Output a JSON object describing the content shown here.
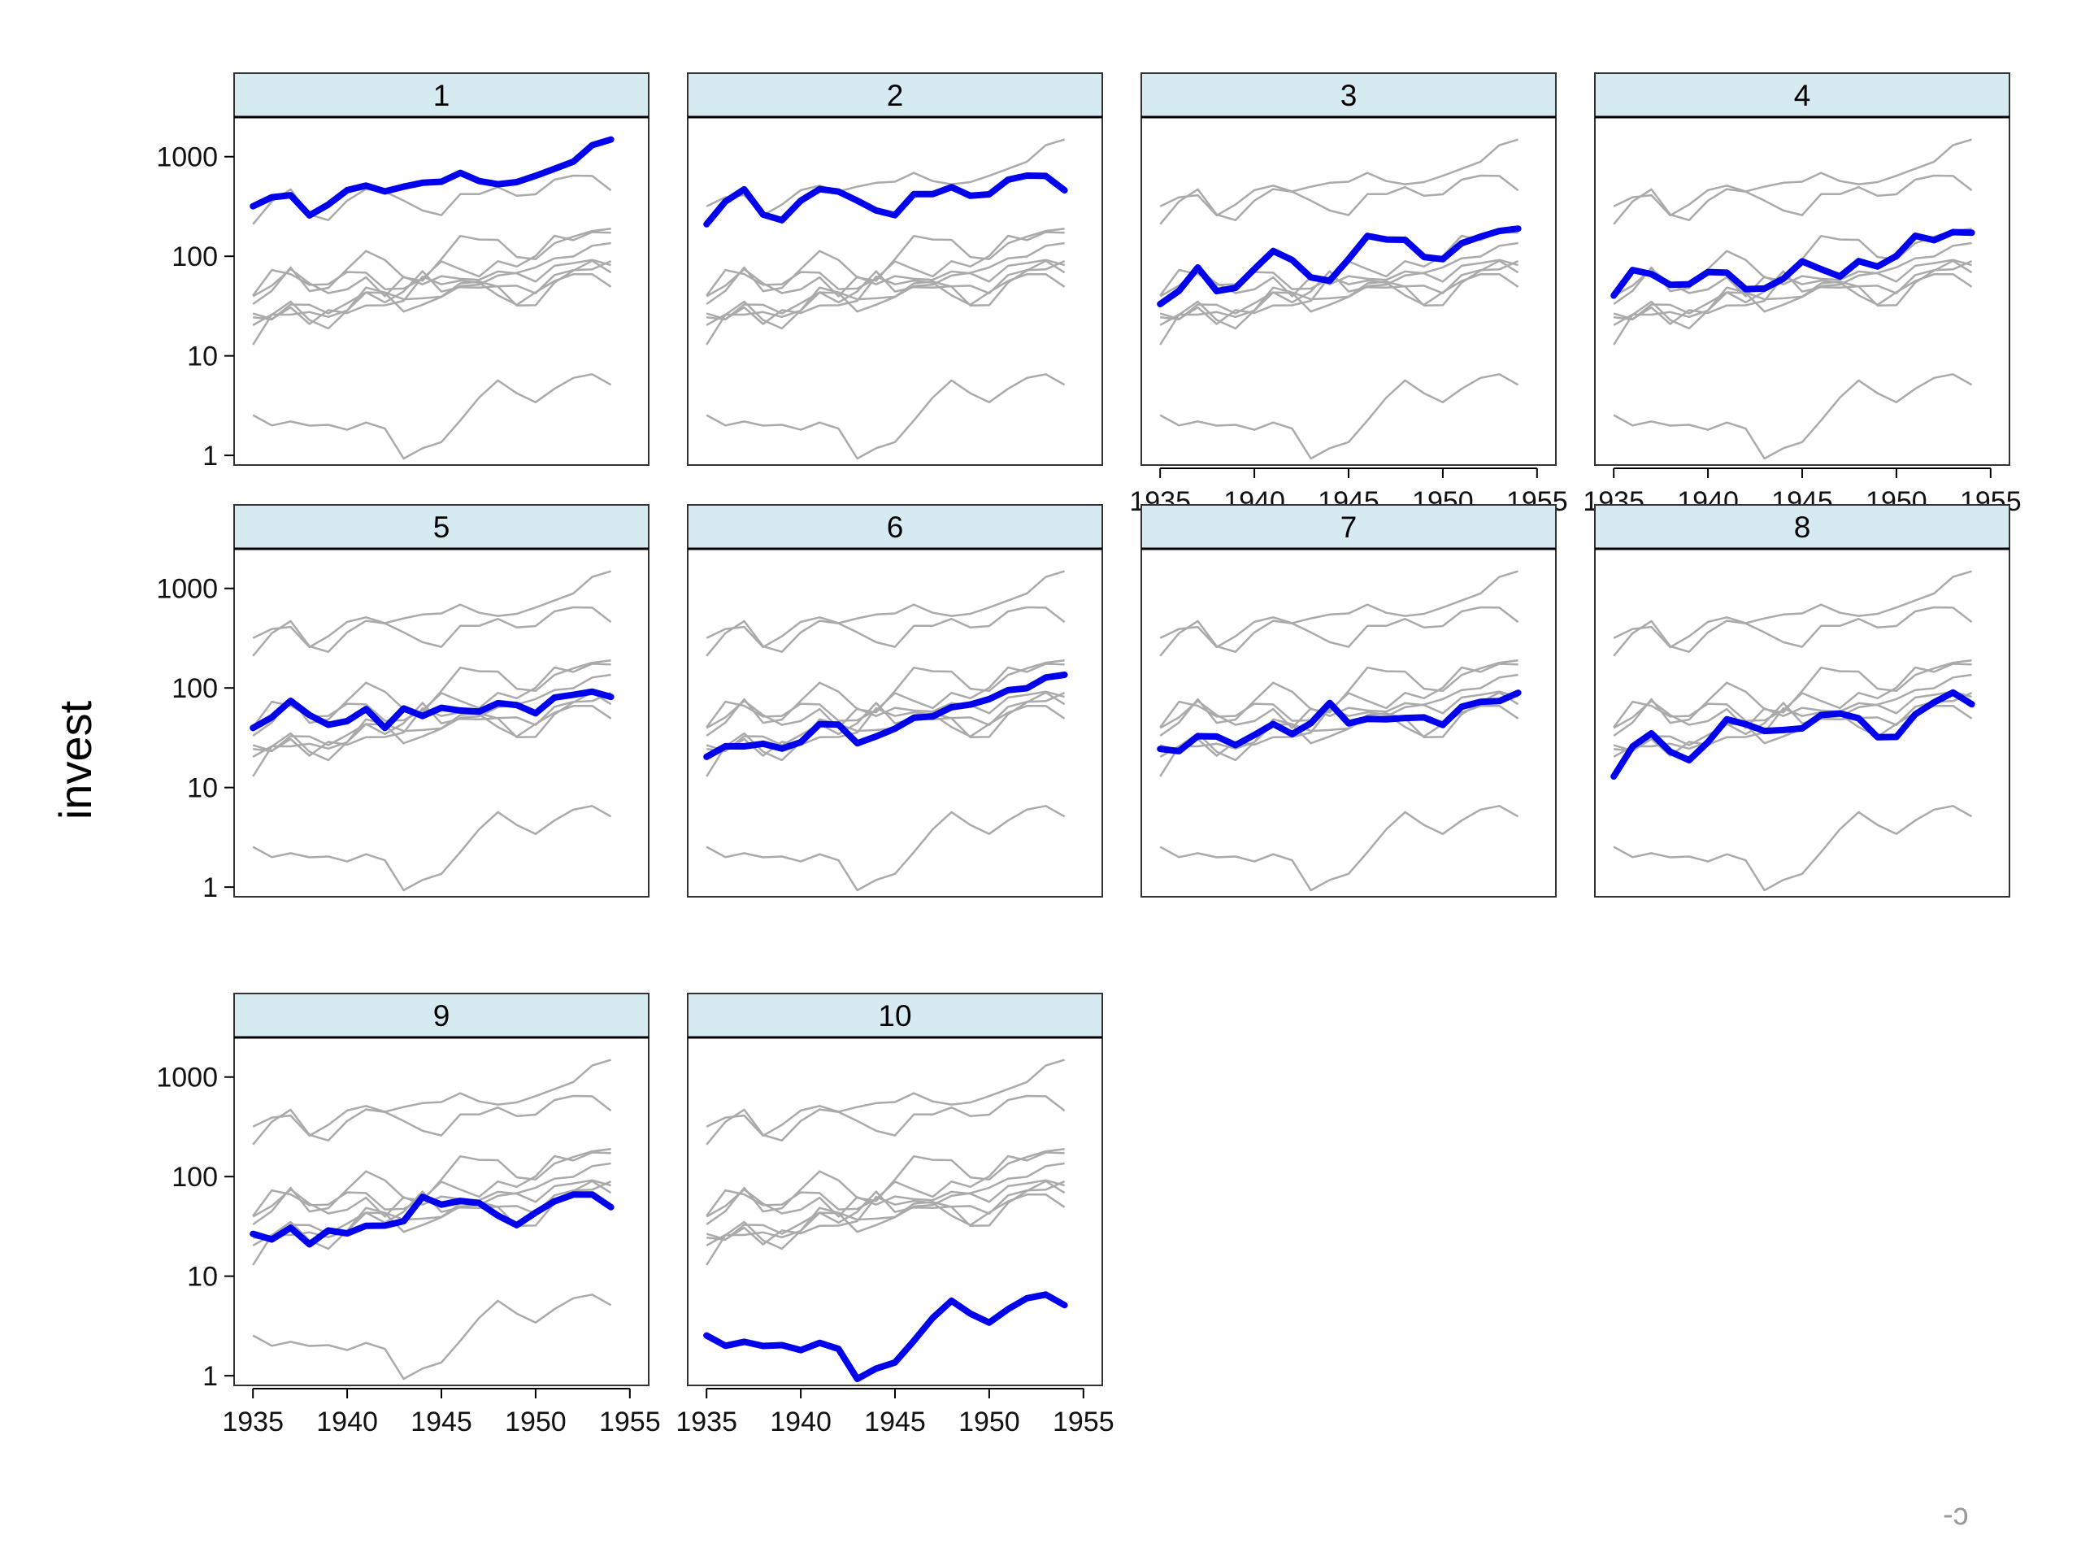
{
  "colors": {
    "highlight": "#0000ee",
    "background_series": "#aaaaaa",
    "strip_fill": "#d6eaf2",
    "panel_border": "#333333"
  },
  "corner_mark": "-ɔ",
  "chart_data": {
    "type": "line",
    "layout": "small-multiples",
    "ylabel": "invest",
    "yscale": "log",
    "ylim": [
      0.8,
      2500
    ],
    "xlim": [
      1934,
      1956
    ],
    "yticks": [
      1,
      10,
      100,
      1000
    ],
    "ytick_labels": [
      "1",
      "10",
      "100",
      "1000"
    ],
    "xticks": [
      1935,
      1940,
      1945,
      1950,
      1955
    ],
    "xtick_labels": [
      "1935",
      "1940",
      "1945",
      "1950",
      "1955"
    ],
    "grid": false,
    "x": [
      1935,
      1936,
      1937,
      1938,
      1939,
      1940,
      1941,
      1942,
      1943,
      1944,
      1945,
      1946,
      1947,
      1948,
      1949,
      1950,
      1951,
      1952,
      1953,
      1954
    ],
    "series": [
      {
        "name": "1",
        "values": [
          317.6,
          391.8,
          410.6,
          257.7,
          330.8,
          461.2,
          512.0,
          448.0,
          499.6,
          547.5,
          561.2,
          688.1,
          568.9,
          529.2,
          555.1,
          642.9,
          755.9,
          891.2,
          1304.4,
          1486.7
        ]
      },
      {
        "name": "2",
        "values": [
          209.9,
          355.3,
          469.9,
          262.3,
          230.4,
          361.6,
          472.8,
          445.6,
          361.6,
          288.2,
          258.7,
          420.3,
          420.5,
          494.5,
          405.1,
          418.8,
          588.2,
          645.5,
          641.0,
          459.3
        ]
      },
      {
        "name": "3",
        "values": [
          33.1,
          45.0,
          77.2,
          44.6,
          48.1,
          74.4,
          113.0,
          91.9,
          61.3,
          56.8,
          93.6,
          159.9,
          147.2,
          146.3,
          98.3,
          93.5,
          135.2,
          157.3,
          179.5,
          189.6
        ]
      },
      {
        "name": "4",
        "values": [
          40.29,
          72.76,
          66.26,
          51.6,
          52.41,
          69.41,
          68.35,
          46.8,
          47.4,
          59.57,
          88.78,
          74.12,
          62.68,
          89.36,
          78.98,
          100.66,
          160.62,
          145.0,
          174.93,
          172.49
        ]
      },
      {
        "name": "5",
        "values": [
          39.68,
          50.73,
          74.24,
          53.51,
          42.65,
          46.48,
          61.4,
          39.67,
          62.24,
          52.32,
          63.21,
          59.37,
          58.02,
          70.34,
          67.42,
          55.74,
          80.3,
          85.4,
          91.9,
          81.43
        ]
      },
      {
        "name": "6",
        "values": [
          20.36,
          25.98,
          25.94,
          27.53,
          24.6,
          28.54,
          43.41,
          42.81,
          27.84,
          32.6,
          39.03,
          50.17,
          51.85,
          64.03,
          68.16,
          77.34,
          95.3,
          99.49,
          127.52,
          135.72
        ]
      },
      {
        "name": "7",
        "values": [
          24.43,
          23.21,
          32.78,
          32.54,
          26.65,
          33.71,
          43.5,
          34.46,
          44.28,
          70.8,
          44.12,
          48.98,
          48.51,
          50.0,
          50.59,
          42.53,
          64.77,
          72.68,
          73.86,
          89.51
        ]
      },
      {
        "name": "8",
        "values": [
          12.93,
          25.9,
          35.05,
          22.89,
          18.84,
          28.57,
          48.51,
          43.34,
          37.02,
          37.81,
          39.27,
          53.46,
          55.56,
          49.56,
          32.04,
          32.24,
          54.38,
          71.78,
          90.08,
          68.6
        ]
      },
      {
        "name": "9",
        "values": [
          26.63,
          23.39,
          30.65,
          20.89,
          28.78,
          26.93,
          32.08,
          32.21,
          35.69,
          62.47,
          52.32,
          56.95,
          54.32,
          40.53,
          32.54,
          43.48,
          56.49,
          65.98,
          66.11,
          49.34
        ]
      },
      {
        "name": "10",
        "values": [
          2.54,
          2.0,
          2.19,
          1.99,
          2.03,
          1.81,
          2.14,
          1.86,
          0.93,
          1.18,
          1.36,
          2.24,
          3.81,
          5.66,
          4.21,
          3.42,
          4.67,
          6.0,
          6.53,
          5.12
        ]
      }
    ]
  }
}
